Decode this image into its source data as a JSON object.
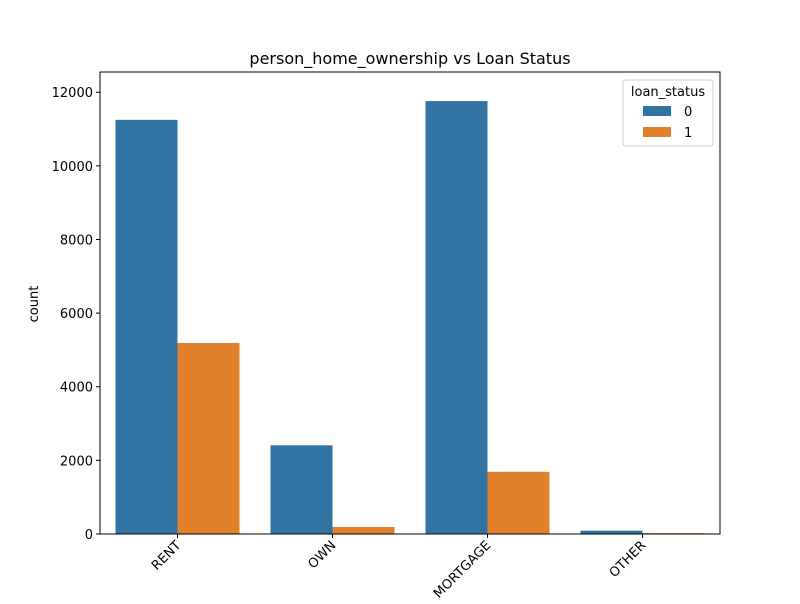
{
  "chart_data": {
    "type": "bar",
    "title": "person_home_ownership vs Loan Status",
    "xlabel": "",
    "ylabel": "count",
    "categories": [
      "RENT",
      "OWN",
      "MORTGAGE",
      "OTHER"
    ],
    "series": [
      {
        "name": "0",
        "values": [
          11250,
          2410,
          11760,
          90
        ],
        "color": "#3274a1"
      },
      {
        "name": "1",
        "values": [
          5190,
          190,
          1690,
          25
        ],
        "color": "#e1812c"
      }
    ],
    "ylim": [
      0,
      12550
    ],
    "yticks": [
      0,
      2000,
      4000,
      6000,
      8000,
      10000,
      12000
    ],
    "ytick_labels": [
      "0",
      "2000",
      "4000",
      "6000",
      "8000",
      "10000",
      "12000"
    ],
    "legend": {
      "title": "loan_status",
      "placement": "top-right"
    },
    "grid": false,
    "xtick_rotation_deg": 45
  }
}
